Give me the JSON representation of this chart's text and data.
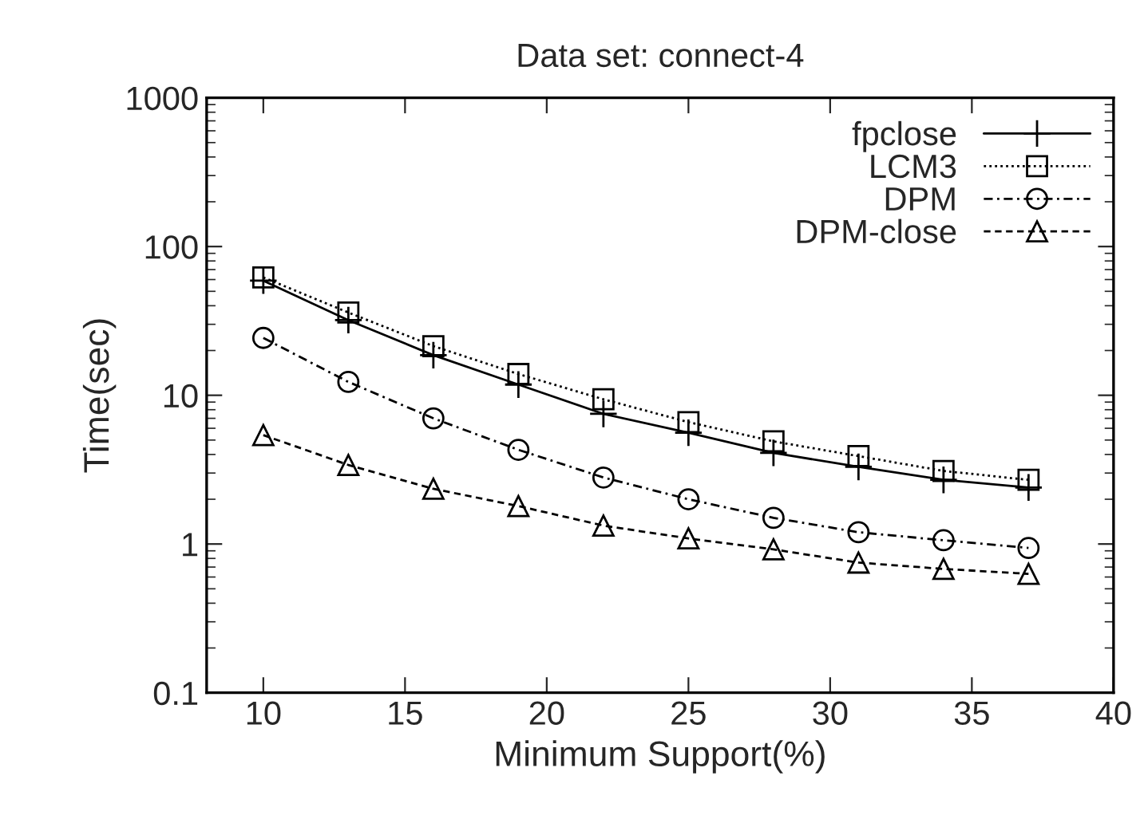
{
  "chart_data": {
    "type": "line",
    "title": "Data set: connect-4",
    "xlabel": "Minimum Support(%)",
    "ylabel": "Time(sec)",
    "x": [
      10,
      13,
      16,
      19,
      22,
      25,
      28,
      31,
      34,
      37
    ],
    "series": [
      {
        "name": "fpclose",
        "color": "#000000",
        "marker": "cross",
        "line_style": "solid",
        "values": [
          59,
          32,
          18.6,
          11.8,
          7.5,
          5.6,
          4.1,
          3.3,
          2.7,
          2.4
        ]
      },
      {
        "name": "LCM3",
        "color": "#000000",
        "marker": "square",
        "line_style": "dotted",
        "values": [
          62,
          36,
          21.4,
          13.9,
          9.4,
          6.6,
          4.9,
          3.9,
          3.1,
          2.7
        ]
      },
      {
        "name": "DPM",
        "color": "#000000",
        "marker": "circle",
        "line_style": "dashdot",
        "values": [
          24.3,
          12.3,
          7.0,
          4.3,
          2.8,
          2.0,
          1.5,
          1.2,
          1.06,
          0.94
        ]
      },
      {
        "name": "DPM-close",
        "color": "#000000",
        "marker": "triangle",
        "line_style": "dashed",
        "values": [
          5.4,
          3.4,
          2.35,
          1.8,
          1.33,
          1.09,
          0.92,
          0.75,
          0.68,
          0.63
        ]
      }
    ],
    "log": "y",
    "xlim": [
      8,
      40
    ],
    "ylim": [
      0.1,
      1000
    ],
    "xticks": [
      10,
      15,
      20,
      25,
      30,
      35,
      40
    ],
    "yticks": [
      0.1,
      1,
      10,
      100,
      1000
    ],
    "grid": false,
    "legend": "top right"
  }
}
